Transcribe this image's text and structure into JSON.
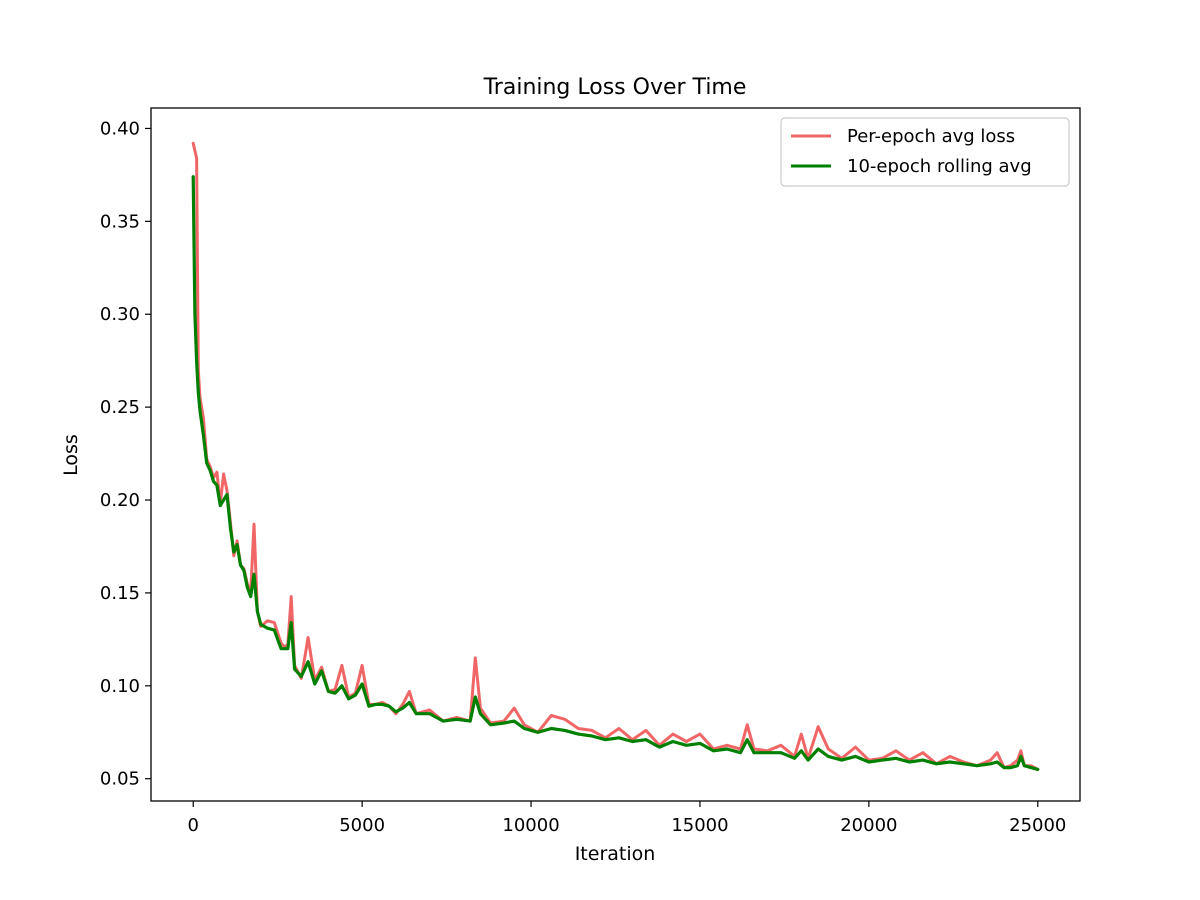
{
  "chart_data": {
    "type": "line",
    "title": "Training Loss Over Time",
    "xlabel": "Iteration",
    "ylabel": "Loss",
    "xlim": [
      -1250,
      26250
    ],
    "ylim": [
      0.038,
      0.411
    ],
    "xticks": [
      0,
      5000,
      10000,
      15000,
      20000,
      25000
    ],
    "yticks": [
      0.05,
      0.1,
      0.15,
      0.2,
      0.25,
      0.3,
      0.35,
      0.4
    ],
    "xtick_labels": [
      "0",
      "5000",
      "10000",
      "15000",
      "20000",
      "25000"
    ],
    "ytick_labels": [
      "0.05",
      "0.10",
      "0.15",
      "0.20",
      "0.25",
      "0.30",
      "0.35",
      "0.40"
    ],
    "grid": false,
    "legend_position": "top-right",
    "series": [
      {
        "name": "Per-epoch avg loss",
        "color": "#f06666",
        "x": [
          0,
          50,
          100,
          150,
          200,
          300,
          400,
          500,
          600,
          700,
          800,
          900,
          1000,
          1100,
          1200,
          1300,
          1400,
          1500,
          1600,
          1700,
          1800,
          1900,
          2000,
          2200,
          2400,
          2600,
          2700,
          2800,
          2900,
          3000,
          3200,
          3400,
          3600,
          3800,
          4000,
          4200,
          4400,
          4600,
          4800,
          5000,
          5200,
          5400,
          5600,
          5800,
          6000,
          6200,
          6400,
          6600,
          7000,
          7400,
          7800,
          8200,
          8350,
          8500,
          8800,
          9200,
          9500,
          9800,
          10200,
          10600,
          11000,
          11400,
          11800,
          12200,
          12600,
          13000,
          13400,
          13800,
          14200,
          14600,
          15000,
          15400,
          15800,
          16200,
          16400,
          16600,
          17000,
          17400,
          17800,
          18000,
          18200,
          18500,
          18800,
          19200,
          19600,
          20000,
          20400,
          20800,
          21200,
          21600,
          22000,
          22400,
          22800,
          23200,
          23600,
          23800,
          24000,
          24200,
          24400,
          24500,
          24600,
          24800,
          25000
        ],
        "y": [
          0.392,
          0.388,
          0.384,
          0.27,
          0.255,
          0.244,
          0.222,
          0.218,
          0.212,
          0.215,
          0.198,
          0.214,
          0.205,
          0.188,
          0.17,
          0.178,
          0.165,
          0.163,
          0.155,
          0.15,
          0.187,
          0.14,
          0.132,
          0.135,
          0.134,
          0.123,
          0.121,
          0.122,
          0.148,
          0.111,
          0.104,
          0.126,
          0.103,
          0.11,
          0.097,
          0.098,
          0.111,
          0.094,
          0.096,
          0.111,
          0.09,
          0.09,
          0.091,
          0.089,
          0.085,
          0.09,
          0.097,
          0.085,
          0.087,
          0.081,
          0.083,
          0.081,
          0.115,
          0.088,
          0.08,
          0.081,
          0.088,
          0.079,
          0.075,
          0.084,
          0.082,
          0.077,
          0.076,
          0.072,
          0.077,
          0.071,
          0.076,
          0.068,
          0.074,
          0.07,
          0.074,
          0.066,
          0.068,
          0.066,
          0.079,
          0.066,
          0.065,
          0.068,
          0.062,
          0.074,
          0.061,
          0.078,
          0.066,
          0.061,
          0.067,
          0.06,
          0.061,
          0.065,
          0.06,
          0.064,
          0.058,
          0.062,
          0.059,
          0.057,
          0.06,
          0.064,
          0.056,
          0.057,
          0.06,
          0.065,
          0.057,
          0.057,
          0.055
        ]
      },
      {
        "name": "10-epoch rolling avg",
        "color": "#008000",
        "x": [
          0,
          50,
          100,
          150,
          200,
          300,
          400,
          500,
          600,
          700,
          800,
          900,
          1000,
          1100,
          1200,
          1300,
          1400,
          1500,
          1600,
          1700,
          1800,
          1900,
          2000,
          2200,
          2400,
          2600,
          2700,
          2800,
          2900,
          3000,
          3200,
          3400,
          3600,
          3800,
          4000,
          4200,
          4400,
          4600,
          4800,
          5000,
          5200,
          5400,
          5600,
          5800,
          6000,
          6200,
          6400,
          6600,
          7000,
          7400,
          7800,
          8200,
          8350,
          8500,
          8800,
          9200,
          9500,
          9800,
          10200,
          10600,
          11000,
          11400,
          11800,
          12200,
          12600,
          13000,
          13400,
          13800,
          14200,
          14600,
          15000,
          15400,
          15800,
          16200,
          16400,
          16600,
          17000,
          17400,
          17800,
          18000,
          18200,
          18500,
          18800,
          19200,
          19600,
          20000,
          20400,
          20800,
          21200,
          21600,
          22000,
          22400,
          22800,
          23200,
          23600,
          23800,
          24000,
          24200,
          24400,
          24500,
          24600,
          24800,
          25000
        ],
        "y": [
          0.374,
          0.3,
          0.275,
          0.258,
          0.248,
          0.235,
          0.22,
          0.216,
          0.21,
          0.208,
          0.197,
          0.2,
          0.203,
          0.185,
          0.172,
          0.176,
          0.165,
          0.162,
          0.153,
          0.148,
          0.16,
          0.14,
          0.133,
          0.131,
          0.13,
          0.12,
          0.12,
          0.12,
          0.134,
          0.109,
          0.105,
          0.113,
          0.101,
          0.108,
          0.097,
          0.096,
          0.1,
          0.093,
          0.095,
          0.101,
          0.089,
          0.09,
          0.09,
          0.089,
          0.086,
          0.088,
          0.091,
          0.085,
          0.085,
          0.081,
          0.082,
          0.081,
          0.094,
          0.085,
          0.079,
          0.08,
          0.081,
          0.077,
          0.075,
          0.077,
          0.076,
          0.074,
          0.073,
          0.071,
          0.072,
          0.07,
          0.071,
          0.067,
          0.07,
          0.068,
          0.069,
          0.065,
          0.066,
          0.064,
          0.071,
          0.064,
          0.064,
          0.064,
          0.061,
          0.065,
          0.06,
          0.066,
          0.062,
          0.06,
          0.062,
          0.059,
          0.06,
          0.061,
          0.059,
          0.06,
          0.058,
          0.059,
          0.058,
          0.057,
          0.058,
          0.059,
          0.056,
          0.056,
          0.057,
          0.062,
          0.057,
          0.056,
          0.055
        ]
      }
    ]
  }
}
